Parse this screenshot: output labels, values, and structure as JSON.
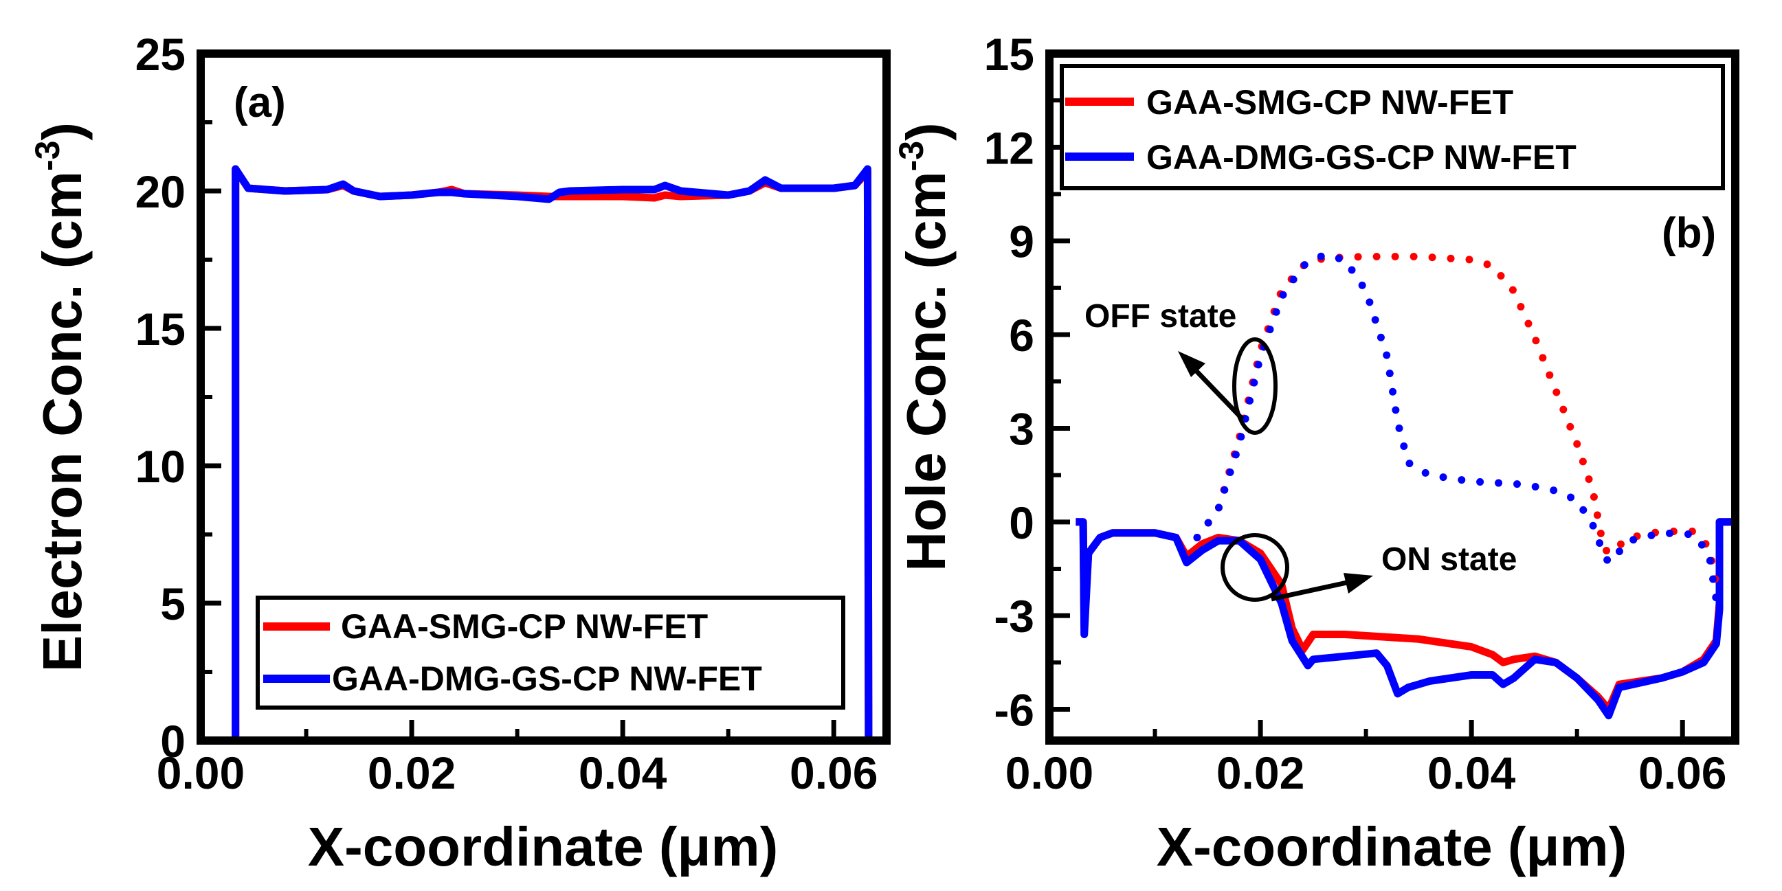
{
  "chart_data": [
    {
      "type": "line",
      "panel_label": "(a)",
      "ylabel": "Electron Conc. (cm",
      "ylabel_sup": "-3",
      "ylabel_close": ")",
      "xlabel": "X-coordinate (μm)",
      "xlim": [
        0.0,
        0.065
      ],
      "ylim": [
        0,
        25
      ],
      "x_ticks": [
        0.0,
        0.02,
        0.04,
        0.06
      ],
      "x_tick_labels": [
        "0.00",
        "0.02",
        "0.04",
        "0.06"
      ],
      "y_ticks": [
        0,
        5,
        10,
        15,
        20,
        25
      ],
      "y_tick_labels": [
        "0",
        "5",
        "10",
        "15",
        "20",
        "25"
      ],
      "legend": {
        "position": "bottom-right",
        "entries": [
          "GAA-SMG-CP NW-FET",
          "GAA-DMG-GS-CP NW-FET"
        ]
      },
      "series": [
        {
          "name": "GAA-SMG-CP NW-FET",
          "color": "#ff0000",
          "style": "solid",
          "points": [
            [
              0.0033,
              0
            ],
            [
              0.0033,
              20.8
            ],
            [
              0.0045,
              20.1
            ],
            [
              0.008,
              20.0
            ],
            [
              0.012,
              20.05
            ],
            [
              0.0135,
              20.2
            ],
            [
              0.0145,
              20.0
            ],
            [
              0.017,
              19.8
            ],
            [
              0.02,
              19.85
            ],
            [
              0.0225,
              19.95
            ],
            [
              0.0238,
              20.05
            ],
            [
              0.025,
              19.9
            ],
            [
              0.03,
              19.85
            ],
            [
              0.033,
              19.8
            ],
            [
              0.035,
              19.8
            ],
            [
              0.04,
              19.8
            ],
            [
              0.043,
              19.75
            ],
            [
              0.044,
              19.85
            ],
            [
              0.0455,
              19.8
            ],
            [
              0.05,
              19.85
            ],
            [
              0.052,
              20.0
            ],
            [
              0.0535,
              20.3
            ],
            [
              0.055,
              20.1
            ],
            [
              0.06,
              20.1
            ],
            [
              0.062,
              20.2
            ],
            [
              0.0632,
              20.7
            ],
            [
              0.0633,
              0
            ]
          ]
        },
        {
          "name": "GAA-DMG-GS-CP NW-FET",
          "color": "#0000ff",
          "style": "solid",
          "points": [
            [
              0.0033,
              0
            ],
            [
              0.0033,
              20.8
            ],
            [
              0.0045,
              20.1
            ],
            [
              0.008,
              20.0
            ],
            [
              0.012,
              20.05
            ],
            [
              0.0135,
              20.25
            ],
            [
              0.0145,
              20.0
            ],
            [
              0.017,
              19.8
            ],
            [
              0.02,
              19.85
            ],
            [
              0.0225,
              19.95
            ],
            [
              0.0238,
              19.95
            ],
            [
              0.025,
              19.9
            ],
            [
              0.03,
              19.8
            ],
            [
              0.033,
              19.7
            ],
            [
              0.034,
              19.95
            ],
            [
              0.035,
              20.0
            ],
            [
              0.04,
              20.05
            ],
            [
              0.043,
              20.05
            ],
            [
              0.044,
              20.2
            ],
            [
              0.0455,
              20.0
            ],
            [
              0.05,
              19.85
            ],
            [
              0.052,
              20.0
            ],
            [
              0.0535,
              20.4
            ],
            [
              0.055,
              20.1
            ],
            [
              0.06,
              20.1
            ],
            [
              0.062,
              20.2
            ],
            [
              0.0632,
              20.8
            ],
            [
              0.0633,
              0
            ]
          ]
        }
      ]
    },
    {
      "type": "line",
      "panel_label": "(b)",
      "ylabel": "Hole Conc. (cm",
      "ylabel_sup": "-3",
      "ylabel_close": ")",
      "xlabel": "X-coordinate (μm)",
      "xlim": [
        0.0,
        0.065
      ],
      "ylim": [
        -7,
        15
      ],
      "x_ticks": [
        0.0,
        0.02,
        0.04,
        0.06
      ],
      "x_tick_labels": [
        "0.00",
        "0.02",
        "0.04",
        "0.06"
      ],
      "y_ticks": [
        -6,
        -3,
        0,
        3,
        6,
        9,
        12,
        15
      ],
      "y_tick_labels": [
        "-6",
        "-3",
        "0",
        "3",
        "6",
        "9",
        "12",
        "15"
      ],
      "legend": {
        "position": "top-right",
        "entries": [
          "GAA-SMG-CP NW-FET",
          "GAA-DMG-GS-CP NW-FET"
        ]
      },
      "annotations": [
        "OFF state",
        "ON state"
      ],
      "series": [
        {
          "name": "GAA-SMG-CP NW-FET (ON state)",
          "color": "#ff0000",
          "style": "solid",
          "points": [
            [
              0.0025,
              0.0
            ],
            [
              0.0032,
              0.0
            ],
            [
              0.0033,
              -3.3
            ],
            [
              0.0037,
              -1.0
            ],
            [
              0.0048,
              -0.5
            ],
            [
              0.006,
              -0.35
            ],
            [
              0.01,
              -0.35
            ],
            [
              0.012,
              -0.5
            ],
            [
              0.013,
              -1.1
            ],
            [
              0.0145,
              -0.7
            ],
            [
              0.016,
              -0.5
            ],
            [
              0.018,
              -0.6
            ],
            [
              0.02,
              -1.0
            ],
            [
              0.022,
              -2.0
            ],
            [
              0.023,
              -3.4
            ],
            [
              0.024,
              -4.1
            ],
            [
              0.025,
              -3.6
            ],
            [
              0.028,
              -3.6
            ],
            [
              0.035,
              -3.75
            ],
            [
              0.04,
              -4.0
            ],
            [
              0.042,
              -4.25
            ],
            [
              0.043,
              -4.5
            ],
            [
              0.044,
              -4.4
            ],
            [
              0.046,
              -4.3
            ],
            [
              0.048,
              -4.5
            ],
            [
              0.05,
              -5.0
            ],
            [
              0.052,
              -5.6
            ],
            [
              0.053,
              -6.0
            ],
            [
              0.054,
              -5.2
            ],
            [
              0.058,
              -5.0
            ],
            [
              0.06,
              -4.8
            ],
            [
              0.062,
              -4.4
            ],
            [
              0.0632,
              -3.8
            ],
            [
              0.0635,
              -2.6
            ],
            [
              0.0635,
              0.0
            ],
            [
              0.065,
              0.0
            ]
          ]
        },
        {
          "name": "GAA-DMG-GS-CP NW-FET (ON state)",
          "color": "#0000ff",
          "style": "solid",
          "points": [
            [
              0.0025,
              0.0
            ],
            [
              0.0032,
              0.0
            ],
            [
              0.0033,
              -3.6
            ],
            [
              0.0037,
              -1.0
            ],
            [
              0.0048,
              -0.5
            ],
            [
              0.006,
              -0.35
            ],
            [
              0.01,
              -0.35
            ],
            [
              0.012,
              -0.5
            ],
            [
              0.013,
              -1.3
            ],
            [
              0.0145,
              -0.9
            ],
            [
              0.016,
              -0.6
            ],
            [
              0.018,
              -0.6
            ],
            [
              0.02,
              -1.2
            ],
            [
              0.022,
              -2.6
            ],
            [
              0.023,
              -3.8
            ],
            [
              0.0245,
              -4.6
            ],
            [
              0.025,
              -4.4
            ],
            [
              0.028,
              -4.3
            ],
            [
              0.031,
              -4.2
            ],
            [
              0.032,
              -4.6
            ],
            [
              0.033,
              -5.5
            ],
            [
              0.034,
              -5.3
            ],
            [
              0.036,
              -5.1
            ],
            [
              0.04,
              -4.9
            ],
            [
              0.042,
              -4.9
            ],
            [
              0.043,
              -5.2
            ],
            [
              0.044,
              -5.0
            ],
            [
              0.046,
              -4.4
            ],
            [
              0.048,
              -4.5
            ],
            [
              0.05,
              -5.0
            ],
            [
              0.052,
              -5.7
            ],
            [
              0.053,
              -6.2
            ],
            [
              0.054,
              -5.3
            ],
            [
              0.058,
              -5.0
            ],
            [
              0.06,
              -4.8
            ],
            [
              0.062,
              -4.5
            ],
            [
              0.0632,
              -3.9
            ],
            [
              0.0635,
              -2.8
            ],
            [
              0.0635,
              0.0
            ],
            [
              0.065,
              0.0
            ]
          ]
        },
        {
          "name": "GAA-SMG-CP NW-FET (OFF state)",
          "color": "#ff0000",
          "style": "dotted",
          "points": [
            [
              0.014,
              -0.5
            ],
            [
              0.016,
              0.4
            ],
            [
              0.018,
              2.7
            ],
            [
              0.02,
              5.5
            ],
            [
              0.022,
              7.4
            ],
            [
              0.024,
              8.2
            ],
            [
              0.026,
              8.45
            ],
            [
              0.03,
              8.5
            ],
            [
              0.035,
              8.5
            ],
            [
              0.04,
              8.4
            ],
            [
              0.042,
              8.2
            ],
            [
              0.044,
              7.4
            ],
            [
              0.046,
              5.9
            ],
            [
              0.048,
              4.2
            ],
            [
              0.05,
              2.5
            ],
            [
              0.0515,
              1.0
            ],
            [
              0.0525,
              -0.8
            ],
            [
              0.053,
              -1.0
            ],
            [
              0.055,
              -0.5
            ],
            [
              0.058,
              -0.3
            ],
            [
              0.061,
              -0.3
            ],
            [
              0.0625,
              -0.8
            ],
            [
              0.0632,
              -2.0
            ]
          ]
        },
        {
          "name": "GAA-DMG-GS-CP NW-FET (OFF state)",
          "color": "#0000ff",
          "style": "dotted",
          "points": [
            [
              0.014,
              -0.5
            ],
            [
              0.016,
              0.4
            ],
            [
              0.018,
              2.5
            ],
            [
              0.02,
              5.3
            ],
            [
              0.022,
              7.2
            ],
            [
              0.024,
              8.2
            ],
            [
              0.026,
              8.55
            ],
            [
              0.028,
              8.4
            ],
            [
              0.03,
              7.4
            ],
            [
              0.032,
              5.3
            ],
            [
              0.033,
              3.2
            ],
            [
              0.034,
              1.9
            ],
            [
              0.036,
              1.5
            ],
            [
              0.04,
              1.3
            ],
            [
              0.045,
              1.2
            ],
            [
              0.048,
              1.0
            ],
            [
              0.05,
              0.7
            ],
            [
              0.0515,
              -0.1
            ],
            [
              0.0525,
              -1.0
            ],
            [
              0.053,
              -1.3
            ],
            [
              0.055,
              -0.6
            ],
            [
              0.058,
              -0.35
            ],
            [
              0.061,
              -0.4
            ],
            [
              0.0625,
              -1.0
            ],
            [
              0.0632,
              -2.5
            ]
          ]
        }
      ]
    }
  ]
}
